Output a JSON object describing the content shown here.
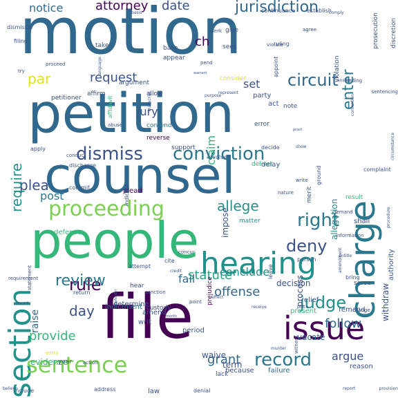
{
  "word_cloud": {
    "palette": {
      "dark_purple": "#440154",
      "indigo": "#3b528b",
      "blue": "#31688e",
      "teal_blue": "#2a788e",
      "teal": "#21918c",
      "sea_green": "#22a884",
      "green": "#35b779",
      "light_green": "#7ad151",
      "yellow_green": "#bddf26",
      "yellow": "#e0e31a"
    },
    "words": [
      {
        "text": "motion",
        "size": 92,
        "color": "#31688e",
        "orient": "h"
      },
      {
        "text": "petition",
        "size": 78,
        "color": "#31688e",
        "orient": "h"
      },
      {
        "text": "counsel",
        "size": 72,
        "color": "#31688e",
        "orient": "h"
      },
      {
        "text": "people",
        "size": 72,
        "color": "#35b779",
        "orient": "h"
      },
      {
        "text": "file",
        "size": 88,
        "color": "#440154",
        "orient": "h"
      },
      {
        "text": "hearing",
        "size": 44,
        "color": "#21918c",
        "orient": "h"
      },
      {
        "text": "charge",
        "size": 50,
        "color": "#2a788e",
        "orient": "v"
      },
      {
        "text": "section",
        "size": 44,
        "color": "#21918c",
        "orient": "v"
      },
      {
        "text": "issue",
        "size": 46,
        "color": "#440154",
        "orient": "h"
      },
      {
        "text": "sentence",
        "size": 32,
        "color": "#7ad151",
        "orient": "h"
      },
      {
        "text": "proceeding",
        "size": 30,
        "color": "#7ad151",
        "orient": "h"
      },
      {
        "text": "conviction",
        "size": 26,
        "color": "#2a788e",
        "orient": "h"
      },
      {
        "text": "dismiss",
        "size": 26,
        "color": "#3b528b",
        "orient": "h"
      },
      {
        "text": "record",
        "size": 26,
        "color": "#2a788e",
        "orient": "h"
      },
      {
        "text": "right",
        "size": 26,
        "color": "#2a788e",
        "orient": "h"
      },
      {
        "text": "deny",
        "size": 24,
        "color": "#3b528b",
        "orient": "h"
      },
      {
        "text": "judge",
        "size": 24,
        "color": "#21918c",
        "orient": "h"
      },
      {
        "text": "circuit",
        "size": 24,
        "color": "#31688e",
        "orient": "h"
      },
      {
        "text": "rule",
        "size": 24,
        "color": "#440154",
        "orient": "h"
      },
      {
        "text": "review",
        "size": 22,
        "color": "#2a788e",
        "orient": "h"
      },
      {
        "text": "jurisdiction",
        "size": 22,
        "color": "#31688e",
        "orient": "h"
      },
      {
        "text": "enter",
        "size": 22,
        "color": "#2a788e",
        "orient": "v"
      },
      {
        "text": "plea",
        "size": 20,
        "color": "#3b528b",
        "orient": "h"
      },
      {
        "text": "allege",
        "size": 20,
        "color": "#21918c",
        "orient": "h"
      },
      {
        "text": "require",
        "size": 20,
        "color": "#21918c",
        "orient": "v"
      },
      {
        "text": "statute",
        "size": 18,
        "color": "#22a884",
        "orient": "h"
      },
      {
        "text": "offense",
        "size": 18,
        "color": "#31688e",
        "orient": "h"
      },
      {
        "text": "follow",
        "size": 18,
        "color": "#31688e",
        "orient": "h"
      },
      {
        "text": "grant",
        "size": 18,
        "color": "#31688e",
        "orient": "h"
      },
      {
        "text": "argue",
        "size": 16,
        "color": "#3b528b",
        "orient": "h"
      },
      {
        "text": "provide",
        "size": 18,
        "color": "#35b779",
        "orient": "h"
      },
      {
        "text": "day",
        "size": 20,
        "color": "#3b528b",
        "orient": "h"
      },
      {
        "text": "attorney",
        "size": 18,
        "color": "#440154",
        "orient": "h"
      },
      {
        "text": "date",
        "size": 18,
        "color": "#3b528b",
        "orient": "h"
      },
      {
        "text": "notice",
        "size": 16,
        "color": "#31688e",
        "orient": "h"
      },
      {
        "text": "request",
        "size": 18,
        "color": "#3b528b",
        "orient": "h"
      },
      {
        "text": "par",
        "size": 20,
        "color": "#e0e31a",
        "orient": "h"
      },
      {
        "text": "set",
        "size": 16,
        "color": "#3b528b",
        "orient": "h"
      },
      {
        "text": "jury",
        "size": 16,
        "color": "#3b528b",
        "orient": "h"
      },
      {
        "text": "claim",
        "size": 16,
        "color": "#35b779",
        "orient": "v"
      },
      {
        "text": "ch",
        "size": 18,
        "color": "#440154",
        "orient": "h"
      },
      {
        "text": "fail",
        "size": 16,
        "color": "#31688e",
        "orient": "h"
      },
      {
        "text": "raise",
        "size": 14,
        "color": "#31688e",
        "orient": "v"
      },
      {
        "text": "post",
        "size": 16,
        "color": "#2a788e",
        "orient": "h"
      },
      {
        "text": "conclude",
        "size": 16,
        "color": "#21918c",
        "orient": "h"
      },
      {
        "text": "evidence",
        "size": 12,
        "color": "#35b779",
        "orient": "h"
      },
      {
        "text": "withdraw",
        "size": 12,
        "color": "#3b528b",
        "orient": "v"
      },
      {
        "text": "vacate",
        "size": 12,
        "color": "#31688e",
        "orient": "h"
      },
      {
        "text": "allegation",
        "size": 12,
        "color": "#21918c",
        "orient": "v"
      },
      {
        "text": "decision",
        "size": 12,
        "color": "#3b528b",
        "orient": "h"
      },
      {
        "text": "process",
        "size": 12,
        "color": "#3b528b",
        "orient": "v"
      },
      {
        "text": "impose",
        "size": 12,
        "color": "#3b528b",
        "orient": "v"
      },
      {
        "text": "term",
        "size": 12,
        "color": "#3b528b",
        "orient": "h"
      },
      {
        "text": "waive",
        "size": 12,
        "color": "#3b528b",
        "orient": "h"
      },
      {
        "text": "plead",
        "size": 10,
        "color": "#440154",
        "orient": "h"
      },
      {
        "text": "shall",
        "size": 10,
        "color": "#3b528b",
        "orient": "h"
      },
      {
        "text": "indictment",
        "size": 10,
        "color": "#2a788e",
        "orient": "h"
      },
      {
        "text": "because",
        "size": 10,
        "color": "#3b528b",
        "orient": "h"
      },
      {
        "text": "failure",
        "size": 10,
        "color": "#31688e",
        "orient": "h"
      },
      {
        "text": "reason",
        "size": 10,
        "color": "#3b528b",
        "orient": "h"
      },
      {
        "text": "remand",
        "size": 10,
        "color": "#3b528b",
        "orient": "h"
      },
      {
        "text": "lack",
        "size": 9,
        "color": "#3b528b",
        "orient": "h"
      },
      {
        "text": "prejudice",
        "size": 9,
        "color": "#440154",
        "orient": "v"
      },
      {
        "text": "present",
        "size": 10,
        "color": "#35b779",
        "orient": "h"
      },
      {
        "text": "relief",
        "size": 10,
        "color": "#3b528b",
        "orient": "h"
      },
      {
        "text": "authority",
        "size": 10,
        "color": "#3b528b",
        "orient": "v"
      },
      {
        "text": "amend",
        "size": 10,
        "color": "#3b528b",
        "orient": "h"
      },
      {
        "text": "writ",
        "size": 10,
        "color": "#3b528b",
        "orient": "h"
      },
      {
        "text": "period",
        "size": 10,
        "color": "#3b528b",
        "orient": "h"
      },
      {
        "text": "custody",
        "size": 9,
        "color": "#3b528b",
        "orient": "h"
      },
      {
        "text": "determine",
        "size": 10,
        "color": "#3b528b",
        "orient": "h"
      },
      {
        "text": "defense",
        "size": 10,
        "color": "#35b779",
        "orient": "h"
      },
      {
        "text": "matter",
        "size": 9,
        "color": "#21918c",
        "orient": "h"
      },
      {
        "text": "deliver",
        "size": 9,
        "color": "#35b779",
        "orient": "h"
      },
      {
        "text": "delay",
        "size": 10,
        "color": "#3b528b",
        "orient": "h"
      },
      {
        "text": "error",
        "size": 9,
        "color": "#3b528b",
        "orient": "h"
      },
      {
        "text": "contend",
        "size": 9,
        "color": "#2a788e",
        "orient": "h"
      },
      {
        "text": "reverse",
        "size": 9,
        "color": "#440154",
        "orient": "h"
      },
      {
        "text": "affirm",
        "size": 9,
        "color": "#3b528b",
        "orient": "h"
      },
      {
        "text": "allow",
        "size": 9,
        "color": "#3b528b",
        "orient": "h"
      },
      {
        "text": "petitioner",
        "size": 9,
        "color": "#3b528b",
        "orient": "h"
      },
      {
        "text": "argument",
        "size": 9,
        "color": "#3b528b",
        "orient": "h"
      },
      {
        "text": "party",
        "size": 10,
        "color": "#3b528b",
        "orient": "h"
      },
      {
        "text": "act",
        "size": 10,
        "color": "#3b528b",
        "orient": "h"
      },
      {
        "text": "note",
        "size": 9,
        "color": "#3b528b",
        "orient": "h"
      },
      {
        "text": "consider",
        "size": 9,
        "color": "#e0e31a",
        "orient": "h"
      },
      {
        "text": "appear",
        "size": 9,
        "color": "#3b528b",
        "orient": "h"
      },
      {
        "text": "base",
        "size": 9,
        "color": "#3b528b",
        "orient": "h"
      },
      {
        "text": "seek",
        "size": 9,
        "color": "#3b528b",
        "orient": "h"
      },
      {
        "text": "give",
        "size": 9,
        "color": "#3b528b",
        "orient": "h"
      },
      {
        "text": "take",
        "size": 9,
        "color": "#3b528b",
        "orient": "h"
      },
      {
        "text": "continuance",
        "size": 8,
        "color": "#3b528b",
        "orient": "h"
      },
      {
        "text": "establish",
        "size": 8,
        "color": "#3b528b",
        "orient": "h"
      },
      {
        "text": "prosecution",
        "size": 9,
        "color": "#3b528b",
        "orient": "v"
      },
      {
        "text": "discretion",
        "size": 9,
        "color": "#3b528b",
        "orient": "v"
      },
      {
        "text": "violation",
        "size": 9,
        "color": "#3b528b",
        "orient": "v"
      },
      {
        "text": "appoint",
        "size": 8,
        "color": "#3b528b",
        "orient": "v"
      },
      {
        "text": "ruling",
        "size": 8,
        "color": "#3b528b",
        "orient": "h"
      },
      {
        "text": "filing",
        "size": 8,
        "color": "#3b528b",
        "orient": "h"
      },
      {
        "text": "dismissal",
        "size": 8,
        "color": "#3b528b",
        "orient": "h"
      },
      {
        "text": "apply",
        "size": 8,
        "color": "#3b528b",
        "orient": "h"
      },
      {
        "text": "support",
        "size": 9,
        "color": "#3b528b",
        "orient": "h"
      },
      {
        "text": "involve",
        "size": 8,
        "color": "#3b528b",
        "orient": "h"
      },
      {
        "text": "decide",
        "size": 8,
        "color": "#3b528b",
        "orient": "h"
      },
      {
        "text": "complaint",
        "size": 8,
        "color": "#3b528b",
        "orient": "h"
      },
      {
        "text": "merit",
        "size": 9,
        "color": "#3b528b",
        "orient": "v"
      },
      {
        "text": "ground",
        "size": 8,
        "color": "#3b528b",
        "orient": "v"
      },
      {
        "text": "indicate",
        "size": 8,
        "color": "#3b528b",
        "orient": "v"
      },
      {
        "text": "commit",
        "size": 8,
        "color": "#3b528b",
        "orient": "h"
      },
      {
        "text": "discharge",
        "size": 8,
        "color": "#3b528b",
        "orient": "h"
      },
      {
        "text": "conduct",
        "size": 7,
        "color": "#3b528b",
        "orient": "h"
      },
      {
        "text": "demand",
        "size": 7,
        "color": "#3b528b",
        "orient": "h"
      },
      {
        "text": "information",
        "size": 7,
        "color": "#3b528b",
        "orient": "h"
      },
      {
        "text": "person",
        "size": 8,
        "color": "#3b528b",
        "orient": "h"
      },
      {
        "text": "attempt",
        "size": 8,
        "color": "#3b528b",
        "orient": "h"
      },
      {
        "text": "hear",
        "size": 9,
        "color": "#3b528b",
        "orient": "h"
      },
      {
        "text": "return",
        "size": 8,
        "color": "#3b528b",
        "orient": "h"
      },
      {
        "text": "result",
        "size": 9,
        "color": "#35b779",
        "orient": "h"
      },
      {
        "text": "sanction",
        "size": 7,
        "color": "#3b528b",
        "orient": "h"
      },
      {
        "text": "point",
        "size": 7,
        "color": "#3b528b",
        "orient": "h"
      },
      {
        "text": "change",
        "size": 7,
        "color": "#3b528b",
        "orient": "h"
      },
      {
        "text": "leave",
        "size": 8,
        "color": "#3b528b",
        "orient": "v"
      },
      {
        "text": "serve",
        "size": 9,
        "color": "#3b528b",
        "orient": "h"
      },
      {
        "text": "bring",
        "size": 8,
        "color": "#3b528b",
        "orient": "h"
      },
      {
        "text": "cite",
        "size": 8,
        "color": "#3b528b",
        "orient": "h"
      },
      {
        "text": "entry",
        "size": 7,
        "color": "#e0e31a",
        "orient": "h"
      },
      {
        "text": "year",
        "size": 9,
        "color": "#3b528b",
        "orient": "h"
      },
      {
        "text": "action",
        "size": 7,
        "color": "#3b528b",
        "orient": "h"
      },
      {
        "text": "nature",
        "size": 7,
        "color": "#3b528b",
        "orient": "h"
      },
      {
        "text": "law",
        "size": 10,
        "color": "#3b528b",
        "orient": "h"
      },
      {
        "text": "denial",
        "size": 8,
        "color": "#3b528b",
        "orient": "h"
      },
      {
        "text": "address",
        "size": 8,
        "color": "#3b528b",
        "orient": "h"
      },
      {
        "text": "include",
        "size": 8,
        "color": "#3b528b",
        "orient": "h"
      },
      {
        "text": "requirement",
        "size": 7,
        "color": "#3b528b",
        "orient": "h"
      },
      {
        "text": "statement",
        "size": 7,
        "color": "#3b528b",
        "orient": "v"
      },
      {
        "text": "count",
        "size": 7,
        "color": "#3b528b",
        "orient": "h"
      },
      {
        "text": "concur",
        "size": 7,
        "color": "#3b528b",
        "orient": "h"
      },
      {
        "text": "pend",
        "size": 7,
        "color": "#3b528b",
        "orient": "h"
      },
      {
        "text": "violate",
        "size": 7,
        "color": "#3b528b",
        "orient": "h"
      },
      {
        "text": "agree",
        "size": 7,
        "color": "#3b528b",
        "orient": "h"
      },
      {
        "text": "clerk",
        "size": 7,
        "color": "#3b528b",
        "orient": "h"
      },
      {
        "text": "try",
        "size": 7,
        "color": "#3b528b",
        "orient": "h"
      },
      {
        "text": "proceed",
        "size": 7,
        "color": "#3b528b",
        "orient": "h"
      },
      {
        "text": "transcript",
        "size": 6,
        "color": "#3b528b",
        "orient": "v"
      },
      {
        "text": "language",
        "size": 6,
        "color": "#3b528b",
        "orient": "v"
      },
      {
        "text": "affidavit",
        "size": 8,
        "color": "#35b779",
        "orient": "v"
      },
      {
        "text": "abuse",
        "size": 7,
        "color": "#3b528b",
        "orient": "h"
      },
      {
        "text": "credit",
        "size": 6,
        "color": "#3b528b",
        "orient": "h"
      },
      {
        "text": "write",
        "size": 7,
        "color": "#3b528b",
        "orient": "h"
      },
      {
        "text": "circumstance",
        "size": 6,
        "color": "#3b528b",
        "orient": "v"
      },
      {
        "text": "procedure",
        "size": 6,
        "color": "#3b528b",
        "orient": "v"
      },
      {
        "text": "witness",
        "size": 7,
        "color": "#3b528b",
        "orient": "v"
      },
      {
        "text": "contention",
        "size": 6,
        "color": "#3b528b",
        "orient": "v"
      },
      {
        "text": "answer",
        "size": 6,
        "color": "#3b528b",
        "orient": "h"
      },
      {
        "text": "sentencing",
        "size": 7,
        "color": "#3b528b",
        "orient": "h"
      },
      {
        "text": "finding",
        "size": 7,
        "color": "#3b528b",
        "orient": "h"
      },
      {
        "text": "comply",
        "size": 6,
        "color": "#3b528b",
        "orient": "h"
      },
      {
        "text": "basis",
        "size": 6,
        "color": "#3b528b",
        "orient": "h"
      },
      {
        "text": "believe",
        "size": 6,
        "color": "#3b528b",
        "orient": "h"
      },
      {
        "text": "provision",
        "size": 6,
        "color": "#3b528b",
        "orient": "h"
      },
      {
        "text": "show",
        "size": 6,
        "color": "#3b528b",
        "orient": "h"
      },
      {
        "text": "amendment",
        "size": 6,
        "color": "#3b528b",
        "orient": "v"
      },
      {
        "text": "entitle",
        "size": 6,
        "color": "#3b528b",
        "orient": "h"
      },
      {
        "text": "represent",
        "size": 6,
        "color": "#3b528b",
        "orient": "h"
      },
      {
        "text": "purpose",
        "size": 6,
        "color": "#3b528b",
        "orient": "h"
      },
      {
        "text": "effect",
        "size": 6,
        "color": "#3b528b",
        "orient": "h"
      },
      {
        "text": "defender",
        "size": 5,
        "color": "#3b528b",
        "orient": "v"
      },
      {
        "text": "proof",
        "size": 5,
        "color": "#3b528b",
        "orient": "h"
      },
      {
        "text": "place",
        "size": 6,
        "color": "#3b528b",
        "orient": "h"
      },
      {
        "text": "report",
        "size": 6,
        "color": "#3b528b",
        "orient": "h"
      },
      {
        "text": "murder",
        "size": 6,
        "color": "#3b528b",
        "orient": "h"
      },
      {
        "text": "receive",
        "size": 6,
        "color": "#3b528b",
        "orient": "h"
      },
      {
        "text": "month",
        "size": 5,
        "color": "#3b528b",
        "orient": "h"
      },
      {
        "text": "warrant",
        "size": 5,
        "color": "#3b528b",
        "orient": "h"
      }
    ]
  }
}
